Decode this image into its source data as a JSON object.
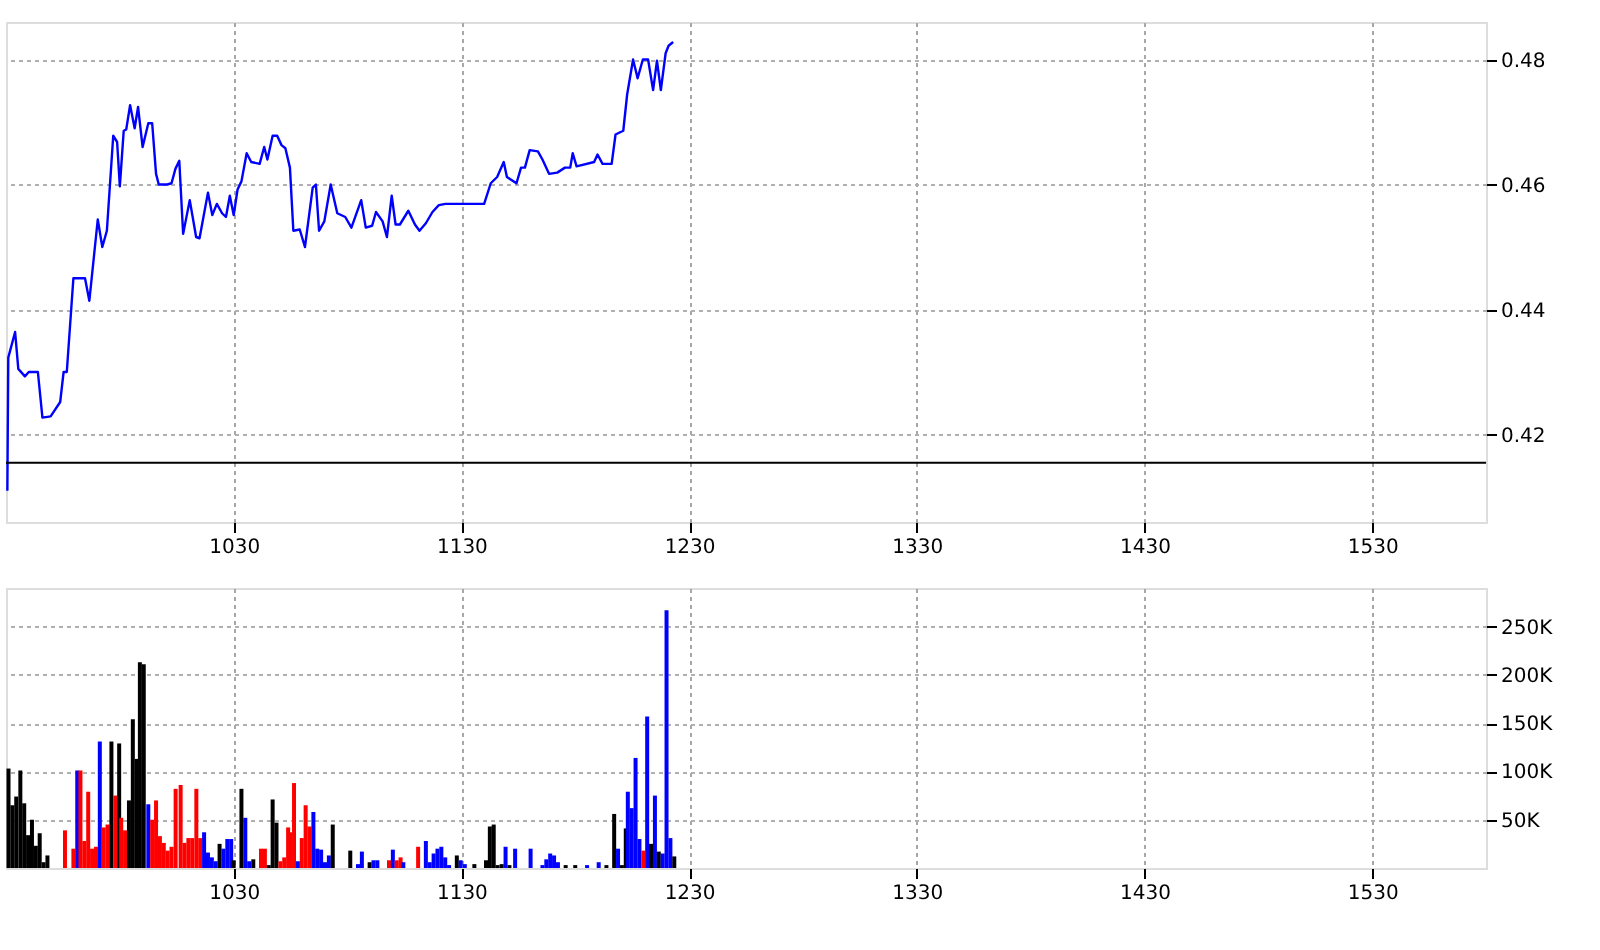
{
  "chart_data": [
    {
      "type": "line",
      "grid": true,
      "line_style": "solid",
      "marker": "none",
      "xlim": [
        930,
        1580
      ],
      "xticks": [
        1030,
        1130,
        1230,
        1330,
        1430,
        1530
      ],
      "ylim": [
        0.406,
        0.486
      ],
      "yticks": [
        {
          "value": 0.42,
          "label": "0.42"
        },
        {
          "value": 0.44,
          "label": "0.44"
        },
        {
          "value": 0.46,
          "label": "0.46"
        },
        {
          "value": 0.48,
          "label": "0.48"
        }
      ],
      "ref_lines": [
        {
          "axis": "y",
          "value": 0.4155,
          "color": "#000000"
        }
      ],
      "series": [
        {
          "color": "#0000ff",
          "x": [
            930.6,
            931,
            934,
            935.4,
            938.3,
            940,
            944,
            946,
            949.6,
            953.8,
            955.3,
            956.7,
            959.6,
            964.7,
            966.6,
            970.3,
            972.3,
            974.3,
            977.1,
            978.8,
            980,
            981.7,
            982.8,
            984.5,
            986.5,
            988,
            990,
            992.5,
            994.2,
            995.9,
            997.1,
            1000.8,
            1002.7,
            1004.4,
            1006.1,
            1007.8,
            1010.7,
            1013.5,
            1015,
            1018.7,
            1020.6,
            1022.6,
            1024.9,
            1026.6,
            1028.3,
            1030,
            1031.7,
            1033.4,
            1035.7,
            1037.7,
            1041.4,
            1043.4,
            1044.8,
            1047.1,
            1049.1,
            1051,
            1052.7,
            1054.7,
            1056.2,
            1059,
            1061.3,
            1064.7,
            1066.1,
            1067.5,
            1069.8,
            1072.6,
            1075.5,
            1079,
            1081.7,
            1086,
            1088,
            1090.8,
            1092.5,
            1095.4,
            1097.3,
            1099.4,
            1101.1,
            1103,
            1106.7,
            1109.6,
            1111.6,
            1114.4,
            1117.3,
            1120.1,
            1123,
            1140,
            1142.9,
            1145.7,
            1148.6,
            1150,
            1154.2,
            1156.2,
            1157.9,
            1160,
            1163.6,
            1165.6,
            1168.5,
            1172.1,
            1175.5,
            1177.8,
            1178.9,
            1180.6,
            1188.3,
            1189.8,
            1192,
            1196,
            1197.7,
            1201.1,
            1202.8,
            1205.4,
            1207.4,
            1209.7,
            1212,
            1214.2,
            1215.9,
            1217.6,
            1219.7,
            1221,
            1223
          ],
          "values": [
            0.411,
            0.4323,
            0.4364,
            0.4305,
            0.4293,
            0.43,
            0.43,
            0.4227,
            0.4229,
            0.4252,
            0.43,
            0.43,
            0.445,
            0.445,
            0.4414,
            0.4544,
            0.45,
            0.4526,
            0.4678,
            0.4668,
            0.4597,
            0.4686,
            0.4688,
            0.4727,
            0.469,
            0.4724,
            0.466,
            0.4698,
            0.4698,
            0.4617,
            0.46,
            0.46,
            0.4602,
            0.4625,
            0.4638,
            0.4521,
            0.4575,
            0.4516,
            0.4514,
            0.4587,
            0.4551,
            0.4569,
            0.4554,
            0.4548,
            0.4582,
            0.4551,
            0.4592,
            0.4605,
            0.465,
            0.4636,
            0.4633,
            0.466,
            0.464,
            0.4678,
            0.4678,
            0.4663,
            0.4658,
            0.4627,
            0.4526,
            0.4528,
            0.45,
            0.4595,
            0.46,
            0.4526,
            0.4541,
            0.46,
            0.4554,
            0.4548,
            0.4531,
            0.4575,
            0.4531,
            0.4534,
            0.4556,
            0.4541,
            0.4516,
            0.4582,
            0.4536,
            0.4536,
            0.4558,
            0.4536,
            0.4526,
            0.4538,
            0.4556,
            0.4567,
            0.4569,
            0.4569,
            0.4602,
            0.4612,
            0.4636,
            0.4612,
            0.4602,
            0.4627,
            0.4627,
            0.4655,
            0.4653,
            0.464,
            0.4617,
            0.4619,
            0.4627,
            0.4627,
            0.465,
            0.4629,
            0.4636,
            0.4648,
            0.4633,
            0.4633,
            0.468,
            0.4686,
            0.4744,
            0.48,
            0.477,
            0.48,
            0.48,
            0.4751,
            0.4798,
            0.4751,
            0.481,
            0.4822,
            0.4828
          ]
        }
      ]
    },
    {
      "type": "bar",
      "grid": true,
      "xlim": [
        930,
        1580
      ],
      "xticks": [
        1030,
        1130,
        1230,
        1330,
        1430,
        1530
      ],
      "ylim": [
        0,
        290000
      ],
      "yticks": [
        {
          "value": 50000,
          "label": "50K"
        },
        {
          "value": 100000,
          "label": "100K"
        },
        {
          "value": 150000,
          "label": "150K"
        },
        {
          "value": 200000,
          "label": "200K"
        },
        {
          "value": 250000,
          "label": "250K"
        }
      ],
      "x": [
        931.1,
        932.8,
        934.5,
        936.3,
        938,
        939.7,
        941.4,
        943.1,
        944.8,
        946.5,
        948.2,
        955.3,
        955.9,
        959.6,
        961.3,
        962.7,
        964.4,
        966.1,
        967.8,
        969.5,
        971.2,
        972.9,
        974.6,
        976.3,
        978,
        979.7,
        980.6,
        982.3,
        984,
        985.7,
        987.4,
        988.8,
        990.5,
        992.5,
        994.2,
        995.9,
        997.6,
        999.3,
        1001,
        1002.7,
        1004.5,
        1006.7,
        1008.4,
        1010.1,
        1011.8,
        1013.6,
        1015.3,
        1017,
        1018.7,
        1020.4,
        1022.1,
        1023.8,
        1025.5,
        1027.2,
        1028.9,
        1030,
        1033.4,
        1035.1,
        1036.8,
        1038.6,
        1042,
        1043.7,
        1045.4,
        1047.1,
        1048.8,
        1050.5,
        1052.2,
        1053.9,
        1054.8,
        1056.5,
        1058.2,
        1059.9,
        1061.6,
        1063.3,
        1065,
        1066.7,
        1068.4,
        1070.1,
        1071.8,
        1073.5,
        1081.2,
        1084.6,
        1086.3,
        1089.7,
        1091.4,
        1093.1,
        1098.2,
        1099.9,
        1101.6,
        1103.3,
        1104.5,
        1111,
        1114.4,
        1116.1,
        1117.8,
        1119.5,
        1121.2,
        1122.9,
        1124.6,
        1128,
        1129.7,
        1131.5,
        1135.7,
        1140.8,
        1142.5,
        1144.2,
        1145.9,
        1147.7,
        1149.4,
        1151.1,
        1153.6,
        1160.4,
        1165.6,
        1167.3,
        1169,
        1170.7,
        1172.4,
        1175.8,
        1180,
        1185.2,
        1190.3,
        1193.7,
        1197.1,
        1198.8,
        1200.5,
        1202.2,
        1203.1,
        1204.8,
        1206.5,
        1208.2,
        1209.9,
        1211.6,
        1213.3,
        1215,
        1216.7,
        1218.4,
        1220.1,
        1221.8,
        1223.5
      ],
      "values": [
        103000,
        65000,
        74000,
        101000,
        67000,
        34000,
        50000,
        23000,
        36000,
        6000,
        13000,
        null,
        39000,
        20000,
        101000,
        101000,
        28000,
        79000,
        20000,
        22000,
        131000,
        42000,
        45000,
        131000,
        75000,
        129000,
        52000,
        39000,
        70000,
        154000,
        113000,
        213000,
        211000,
        66000,
        50000,
        70000,
        33000,
        26000,
        18000,
        22000,
        82000,
        86000,
        26000,
        31000,
        31000,
        82000,
        31000,
        37000,
        16000,
        11000,
        7000,
        25000,
        20000,
        30000,
        30000,
        8000,
        82000,
        52000,
        7000,
        9000,
        20000,
        20000,
        3000,
        71000,
        47000,
        7000,
        11000,
        42000,
        37000,
        88000,
        7000,
        31000,
        65000,
        43000,
        58000,
        20000,
        19000,
        6000,
        13000,
        45000,
        18000,
        4000,
        17000,
        6000,
        8000,
        8000,
        8000,
        19000,
        8000,
        11000,
        6000,
        22000,
        28000,
        6000,
        15000,
        20000,
        22000,
        11000,
        3000,
        13000,
        8000,
        4000,
        4000,
        8000,
        43000,
        45000,
        3000,
        4000,
        22000,
        3000,
        20000,
        20000,
        3000,
        9000,
        15000,
        13000,
        6000,
        3000,
        3000,
        3000,
        6000,
        3000,
        56000,
        20000,
        3000,
        41000,
        79000,
        62000,
        114000,
        30000,
        18000,
        157000,
        25000,
        75000,
        17000,
        15000,
        267000,
        31000,
        12000
      ],
      "colors": [
        "#000000",
        "#000000",
        "#000000",
        "#000000",
        "#000000",
        "#000000",
        "#000000",
        "#000000",
        "#000000",
        "#000000",
        "#000000",
        "#000000",
        "#ff0000",
        "#ff0000",
        "#0000ff",
        "#ff0000",
        "#ff0000",
        "#ff0000",
        "#ff0000",
        "#ff0000",
        "#0000ff",
        "#ff0000",
        "#ff0000",
        "#000000",
        "#ff0000",
        "#000000",
        "#ff0000",
        "#ff0000",
        "#000000",
        "#000000",
        "#000000",
        "#000000",
        "#000000",
        "#0000ff",
        "#ff0000",
        "#ff0000",
        "#ff0000",
        "#ff0000",
        "#ff0000",
        "#ff0000",
        "#ff0000",
        "#ff0000",
        "#ff0000",
        "#ff0000",
        "#ff0000",
        "#ff0000",
        "#ff0000",
        "#0000ff",
        "#0000ff",
        "#0000ff",
        "#0000ff",
        "#000000",
        "#0000ff",
        "#0000ff",
        "#0000ff",
        "#000000",
        "#000000",
        "#0000ff",
        "#0000ff",
        "#000000",
        "#ff0000",
        "#ff0000",
        "#000000",
        "#000000",
        "#000000",
        "#ff0000",
        "#ff0000",
        "#ff0000",
        "#ff0000",
        "#ff0000",
        "#0000ff",
        "#ff0000",
        "#ff0000",
        "#ff0000",
        "#0000ff",
        "#0000ff",
        "#0000ff",
        "#0000ff",
        "#0000ff",
        "#000000",
        "#000000",
        "#0000ff",
        "#0000ff",
        "#000000",
        "#0000ff",
        "#0000ff",
        "#ff0000",
        "#0000ff",
        "#ff0000",
        "#ff0000",
        "#0000ff",
        "#ff0000",
        "#0000ff",
        "#0000ff",
        "#0000ff",
        "#0000ff",
        "#0000ff",
        "#0000ff",
        "#0000ff",
        "#000000",
        "#0000ff",
        "#0000ff",
        "#000000",
        "#000000",
        "#000000",
        "#000000",
        "#000000",
        "#000000",
        "#0000ff",
        "#000000",
        "#0000ff",
        "#0000ff",
        "#0000ff",
        "#0000ff",
        "#0000ff",
        "#0000ff",
        "#0000ff",
        "#000000",
        "#000000",
        "#0000ff",
        "#0000ff",
        "#000000",
        "#000000",
        "#0000ff",
        "#000000",
        "#000000",
        "#0000ff",
        "#0000ff",
        "#0000ff",
        "#0000ff",
        "#ff0000",
        "#0000ff",
        "#000000",
        "#0000ff",
        "#000000",
        "#0000ff",
        "#0000ff",
        "#0000ff",
        "#000000"
      ]
    }
  ]
}
